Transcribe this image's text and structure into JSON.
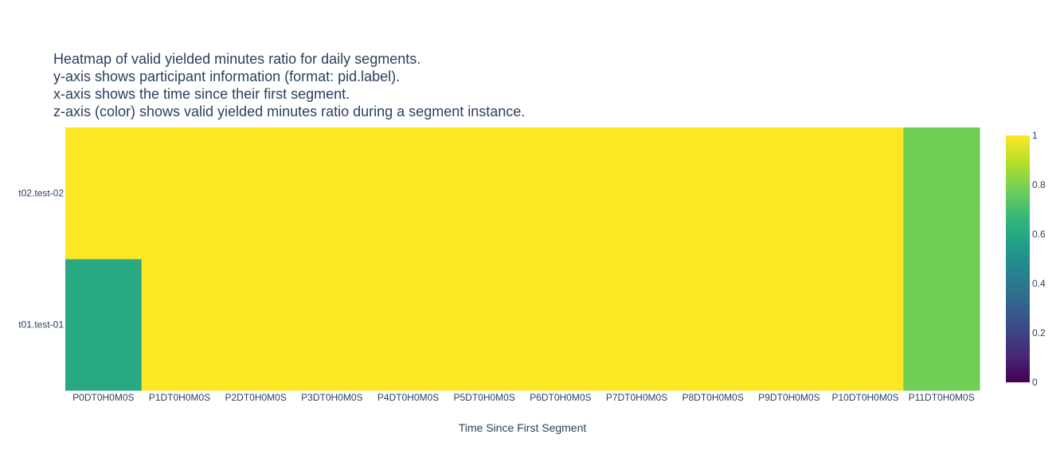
{
  "chart_data": {
    "type": "heatmap",
    "title_lines": [
      "Heatmap of valid yielded minutes ratio for daily segments.",
      "y-axis shows participant information (format: pid.label).",
      "x-axis shows the time since their first segment.",
      "z-axis (color) shows valid yielded minutes ratio during a segment instance."
    ],
    "xlabel": "Time Since First Segment",
    "ylabel": "",
    "x": [
      "P0DT0H0M0S",
      "P1DT0H0M0S",
      "P2DT0H0M0S",
      "P3DT0H0M0S",
      "P4DT0H0M0S",
      "P5DT0H0M0S",
      "P6DT0H0M0S",
      "P7DT0H0M0S",
      "P8DT0H0M0S",
      "P9DT0H0M0S",
      "P10DT0H0M0S",
      "P11DT0H0M0S"
    ],
    "y": [
      "t01.test-01",
      "t02.test-02"
    ],
    "z": [
      [
        0.6,
        1,
        1,
        1,
        1,
        1,
        1,
        1,
        1,
        1,
        1,
        0.78
      ],
      [
        1,
        1,
        1,
        1,
        1,
        1,
        1,
        1,
        1,
        1,
        1,
        0.78
      ]
    ],
    "colorscale": "Viridis",
    "zrange": [
      0,
      1
    ],
    "colorbar_ticks": [
      "0",
      "0.2",
      "0.4",
      "0.6",
      "0.8",
      "1"
    ],
    "colorbar_tick_values": [
      0,
      0.2,
      0.4,
      0.6,
      0.8,
      1
    ]
  }
}
